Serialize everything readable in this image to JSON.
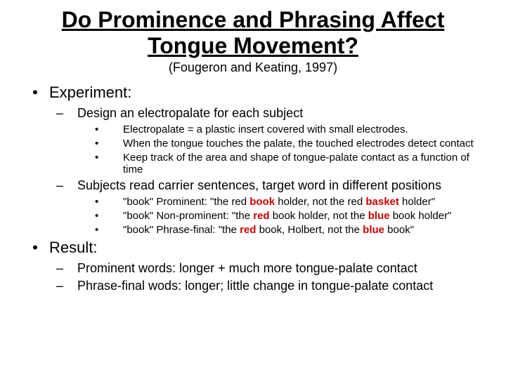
{
  "title": "Do Prominence and Phrasing Affect Tongue Movement?",
  "subtitle": "(Fougeron and Keating, 1997)",
  "s1": {
    "heading": "Experiment:",
    "a1": "Design an electropalate for each subject",
    "a1b1": "Electropalate = a plastic insert covered with small electrodes.",
    "a1b2": "When the tongue touches the palate, the touched electrodes detect contact",
    "a1b3": "Keep track of the area and shape of tongue-palate contact as a function of time",
    "a2": "Subjects read carrier sentences, target word in different positions",
    "a2b1_pre": "\"book\" Prominent: \"the red ",
    "a2b1_w1": "book",
    "a2b1_mid": " holder, not the red ",
    "a2b1_w2": "basket",
    "a2b1_post": " holder\"",
    "a2b2_pre": "\"book\" Non-prominent: \"the ",
    "a2b2_w1": "red",
    "a2b2_mid": " book holder, not the ",
    "a2b2_w2": "blue",
    "a2b2_post": " book holder\"",
    "a2b3_pre": "\"book\" Phrase-final: \"the ",
    "a2b3_w1": "red",
    "a2b3_mid": " book, Holbert, not the ",
    "a2b3_w2": "blue",
    "a2b3_post": " book\""
  },
  "s2": {
    "heading": "Result:",
    "b1": "Prominent words: longer + much more tongue-palate contact",
    "b2": "Phrase-final wods: longer; little change in tongue-palate contact"
  },
  "colors": {
    "emphasis": "#cc0000",
    "text": "#000000",
    "background": "#ffffff"
  }
}
